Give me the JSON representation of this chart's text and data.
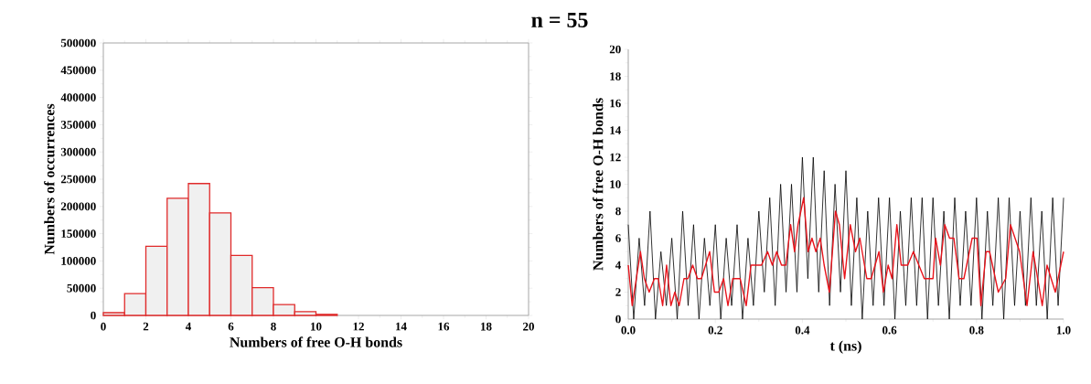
{
  "chart_data": [
    {
      "type": "histogram",
      "title": "n = 55",
      "xlabel": "Numbers of free O-H bonds",
      "ylabel": "Numbers of occurrences",
      "bins": [
        0,
        1,
        2,
        3,
        4,
        5,
        6,
        7,
        8,
        9,
        10,
        11
      ],
      "values": [
        5000,
        40000,
        127000,
        215000,
        242000,
        188000,
        110000,
        51000,
        20000,
        7000,
        2000
      ],
      "color": "#e02a2a",
      "xlim": [
        0,
        20
      ],
      "xticks": [
        0,
        2,
        4,
        6,
        8,
        10,
        12,
        14,
        16,
        18,
        20
      ],
      "ylim": [
        0,
        500000
      ],
      "yticks": [
        0,
        50000,
        100000,
        150000,
        200000,
        250000,
        300000,
        350000,
        400000,
        450000,
        500000
      ]
    },
    {
      "type": "line",
      "xlabel": "t (ns)",
      "ylabel": "Numbers of free O-H bonds",
      "xlim": [
        0,
        1
      ],
      "xticks": [
        {
          "value": 0,
          "label": "0.0"
        },
        {
          "value": 0.2,
          "label": "0.2"
        },
        {
          "value": 0.4,
          "label": "0.4"
        },
        {
          "value": 0.6,
          "label": "0.6"
        },
        {
          "value": 0.8,
          "label": "0.8"
        },
        {
          "value": 1,
          "label": "1.0"
        }
      ],
      "ylim": [
        0,
        20
      ],
      "yticks": [
        0,
        2,
        4,
        6,
        8,
        10,
        12,
        14,
        16,
        18,
        20
      ],
      "series": [
        {
          "color": "#000000",
          "x": [
            0,
            0.0125,
            0.025,
            0.0375,
            0.05,
            0.0625,
            0.075,
            0.0875,
            0.1,
            0.1125,
            0.125,
            0.1375,
            0.15,
            0.1625,
            0.175,
            0.1875,
            0.2,
            0.2125,
            0.225,
            0.2375,
            0.25,
            0.2625,
            0.275,
            0.2875,
            0.3,
            0.3125,
            0.325,
            0.3375,
            0.35,
            0.3625,
            0.375,
            0.3875,
            0.4,
            0.4125,
            0.425,
            0.4375,
            0.45,
            0.4625,
            0.475,
            0.4875,
            0.5,
            0.5125,
            0.525,
            0.5375,
            0.55,
            0.5625,
            0.575,
            0.5875,
            0.6,
            0.6125,
            0.625,
            0.6375,
            0.65,
            0.6625,
            0.675,
            0.6875,
            0.7,
            0.7125,
            0.725,
            0.7375,
            0.75,
            0.7625,
            0.775,
            0.7875,
            0.8,
            0.8125,
            0.825,
            0.8375,
            0.85,
            0.8625,
            0.875,
            0.8875,
            0.9,
            0.9125,
            0.925,
            0.9375,
            0.95,
            0.9625,
            0.975,
            0.9875,
            1
          ],
          "values": [
            7,
            0,
            6,
            1,
            8,
            0,
            5,
            1,
            6,
            0,
            8,
            1,
            7,
            0,
            6,
            1,
            7,
            0,
            6,
            1,
            7,
            0,
            6,
            1,
            8,
            2,
            9,
            1,
            10,
            2,
            10,
            2,
            12,
            3,
            12,
            2,
            11,
            1,
            10,
            2,
            11,
            1,
            9,
            0,
            8,
            1,
            9,
            1,
            9,
            0,
            8,
            1,
            9,
            1,
            9,
            0,
            9,
            1,
            8,
            0,
            9,
            1,
            8,
            1,
            9,
            0,
            8,
            1,
            9,
            0,
            9,
            1,
            8,
            1,
            9,
            1,
            8,
            0,
            9,
            1,
            9
          ]
        },
        {
          "color": "#e8141c",
          "x": [
            0,
            0.009,
            0.028,
            0.037,
            0.048,
            0.06,
            0.069,
            0.079,
            0.088,
            0.098,
            0.107,
            0.117,
            0.128,
            0.137,
            0.148,
            0.159,
            0.168,
            0.187,
            0.198,
            0.208,
            0.219,
            0.229,
            0.24,
            0.257,
            0.271,
            0.282,
            0.296,
            0.306,
            0.32,
            0.331,
            0.341,
            0.352,
            0.362,
            0.373,
            0.382,
            0.39,
            0.403,
            0.413,
            0.422,
            0.431,
            0.441,
            0.45,
            0.462,
            0.476,
            0.485,
            0.497,
            0.51,
            0.522,
            0.532,
            0.548,
            0.558,
            0.576,
            0.586,
            0.597,
            0.606,
            0.617,
            0.627,
            0.642,
            0.655,
            0.68,
            0.7,
            0.706,
            0.717,
            0.727,
            0.738,
            0.748,
            0.76,
            0.771,
            0.79,
            0.801,
            0.81,
            0.822,
            0.83,
            0.85,
            0.867,
            0.878,
            0.899,
            0.916,
            0.93,
            0.951,
            0.962,
            0.981,
            1
          ],
          "values": [
            4,
            1,
            5,
            3,
            2,
            3,
            3,
            1,
            4,
            1,
            2,
            1,
            3,
            3,
            4,
            3,
            3,
            5,
            2,
            2,
            3,
            1,
            3,
            3,
            1,
            4,
            4,
            4,
            5,
            4,
            5,
            4,
            4,
            7,
            5,
            7,
            9,
            5,
            6,
            5,
            6,
            4,
            2,
            8,
            7,
            3,
            7,
            5,
            6,
            3,
            3,
            5,
            2,
            4,
            3,
            7,
            4,
            4,
            5,
            3,
            3,
            6,
            4,
            7,
            6,
            6,
            3,
            3,
            6,
            6,
            1,
            5,
            5,
            2,
            3,
            7,
            5,
            1,
            5,
            1,
            4,
            2,
            5
          ]
        }
      ]
    }
  ]
}
